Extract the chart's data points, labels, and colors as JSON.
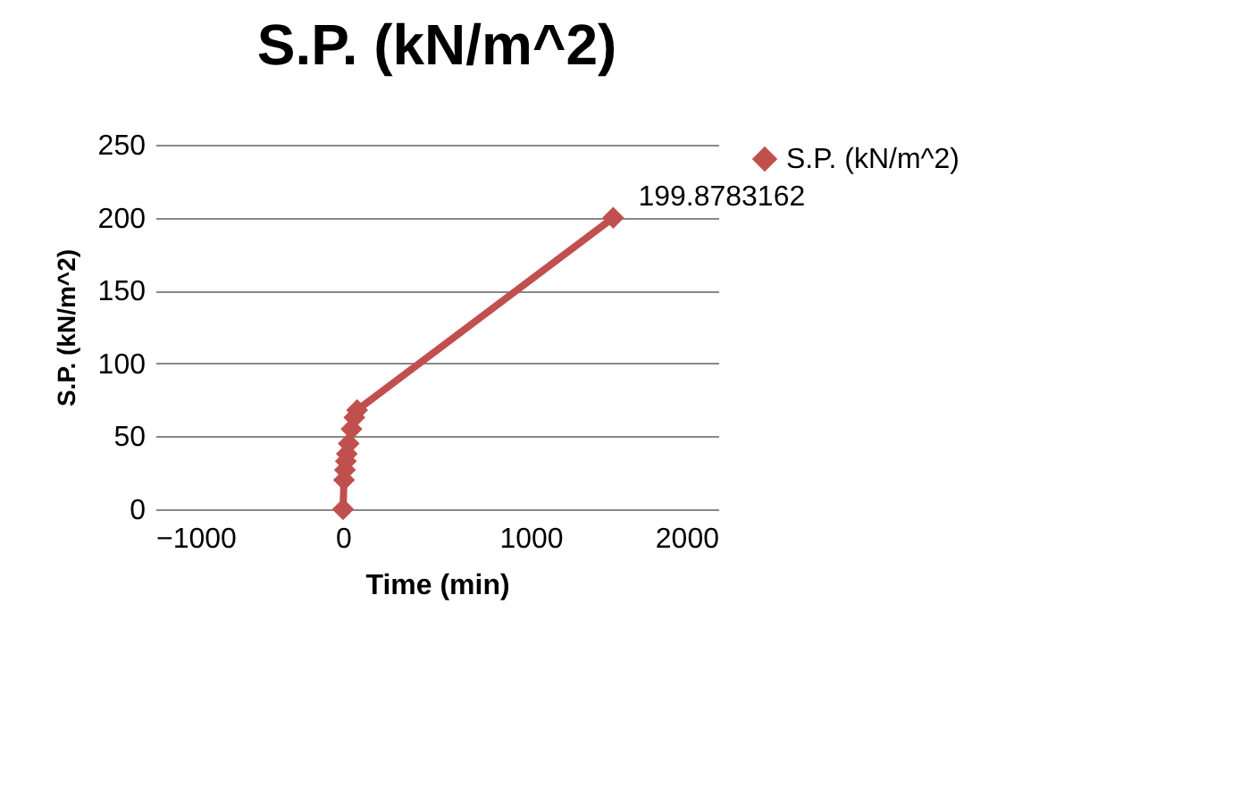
{
  "chart_data": {
    "type": "line",
    "title": "S.P. (kN/m^2)",
    "xlabel": "Time (min)",
    "ylabel": "S.P. (kN/m^2)",
    "x": [
      0,
      5,
      10,
      15,
      20,
      30,
      45,
      60,
      75,
      1440
    ],
    "series": [
      {
        "name": "S.P. (kN/m^2)",
        "color": "#c0504d",
        "values": [
          0,
          20,
          27,
          33,
          38,
          45,
          55,
          63,
          68,
          199.8783162
        ],
        "value_labels": [
          null,
          null,
          null,
          null,
          null,
          null,
          null,
          null,
          null,
          "199.8783162"
        ]
      }
    ],
    "xlim": [
      -1000,
      2000
    ],
    "xticks": [
      -1000,
      0,
      1000,
      2000
    ],
    "ylim": [
      0,
      250
    ],
    "yticks": [
      0,
      50,
      100,
      150,
      200,
      250
    ],
    "grid": "y",
    "legend": "right",
    "marker": "diamond",
    "line_style": "solid"
  }
}
